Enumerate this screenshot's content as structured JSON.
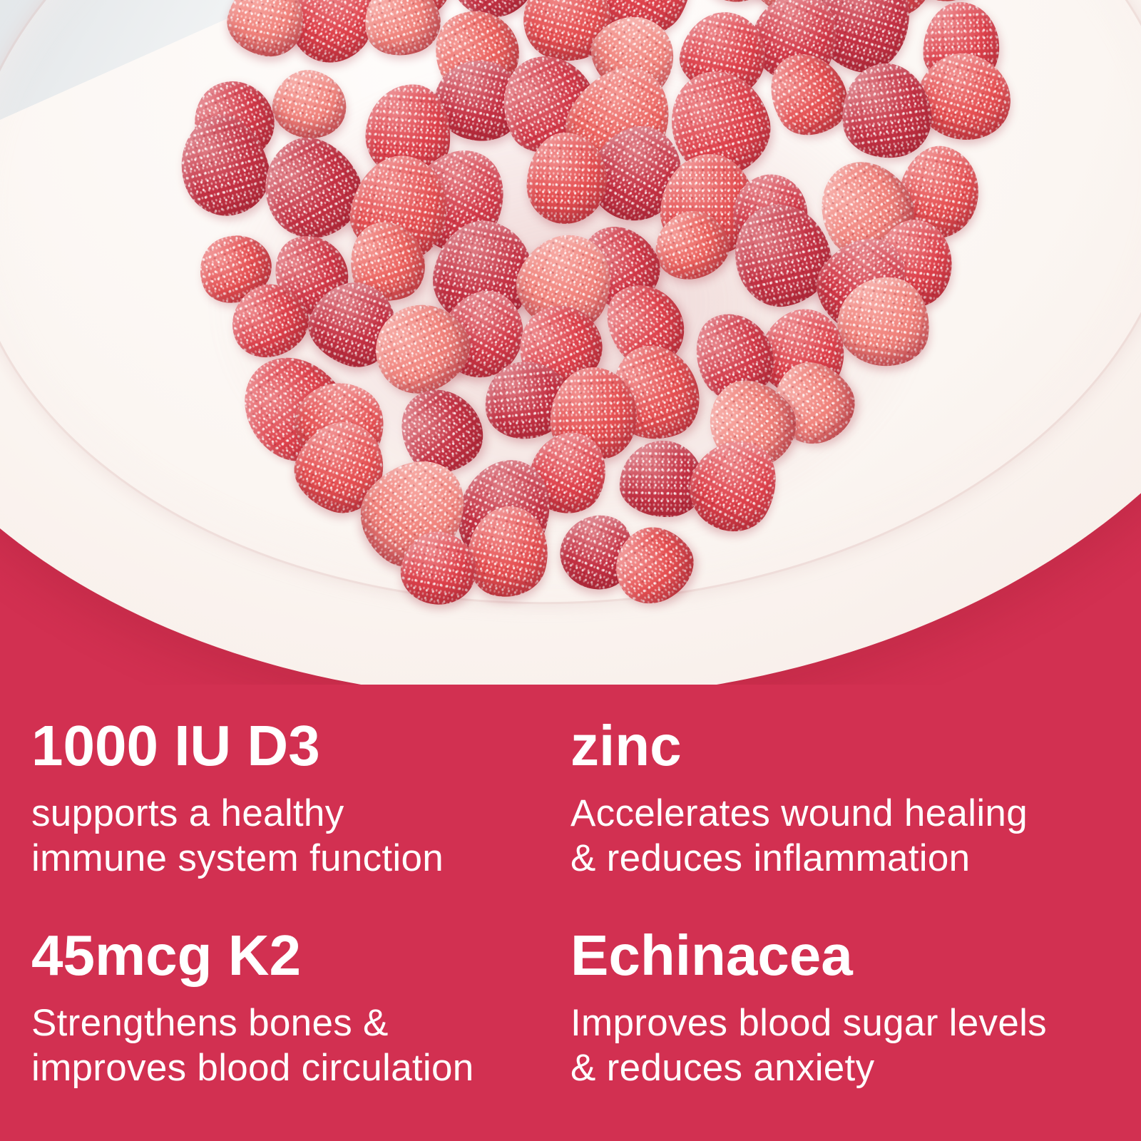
{
  "colors": {
    "background": "#d23051",
    "text": "#ffffff",
    "plate": "#fbf6f2",
    "table": "#e7eaec",
    "gummy_palette": [
      "#f0827b",
      "#eb625e",
      "#e55052",
      "#de424c",
      "#d23a49",
      "#c43244"
    ]
  },
  "photo": {
    "alt": "Sugar-coated red gummy vitamin drops piled on a round white plate"
  },
  "ingredients": [
    {
      "name": "1000 IU D3",
      "benefit": "supports a healthy\nimmune system function"
    },
    {
      "name": "zinc",
      "benefit": "Accelerates wound healing\n& reduces inflammation"
    },
    {
      "name": "45mcg K2",
      "benefit": "Strengthens bones &\nimproves blood circulation"
    },
    {
      "name": "Echinacea",
      "benefit": "Improves blood sugar levels\n& reduces anxiety"
    }
  ]
}
